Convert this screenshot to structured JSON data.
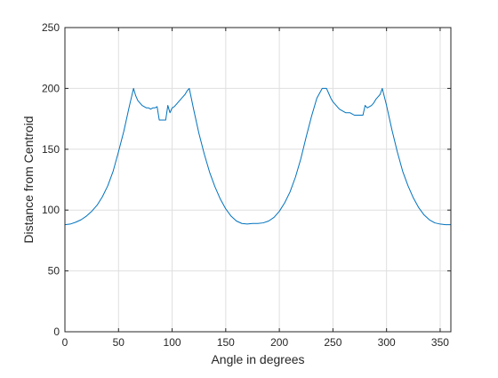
{
  "chart_data": {
    "type": "line",
    "title": "",
    "xlabel": "Angle in degrees",
    "ylabel": "Distance from Centroid",
    "xlim": [
      0,
      360
    ],
    "ylim": [
      0,
      250
    ],
    "xticks": [
      0,
      50,
      100,
      150,
      200,
      250,
      300,
      350
    ],
    "yticks": [
      0,
      50,
      100,
      150,
      200,
      250
    ],
    "xtick_labels": [
      "0",
      "50",
      "100",
      "150",
      "200",
      "250",
      "300",
      "350"
    ],
    "ytick_labels": [
      "0",
      "50",
      "100",
      "150",
      "200",
      "250"
    ],
    "grid": true,
    "line_color": "#0072BD",
    "series": [
      {
        "x": [
          0,
          5,
          10,
          15,
          20,
          25,
          30,
          35,
          40,
          45,
          50,
          55,
          60,
          64,
          66,
          68,
          70,
          72,
          74,
          76,
          78,
          80,
          82,
          84,
          86,
          88,
          90,
          92,
          94,
          96,
          98,
          100,
          102,
          104,
          106,
          108,
          110,
          112,
          114,
          116,
          120,
          125,
          130,
          135,
          140,
          145,
          150,
          155,
          160,
          165,
          170,
          175,
          180,
          185,
          190,
          195,
          200,
          205,
          210,
          215,
          220,
          225,
          230,
          235,
          240,
          244,
          246,
          248,
          250,
          252,
          254,
          256,
          258,
          260,
          262,
          264,
          266,
          268,
          270,
          272,
          274,
          276,
          278,
          280,
          282,
          284,
          286,
          288,
          290,
          292,
          294,
          296,
          300,
          305,
          310,
          315,
          320,
          325,
          330,
          335,
          340,
          345,
          350,
          355,
          360
        ],
        "y": [
          88,
          88.5,
          90,
          92,
          95,
          99,
          104,
          111,
          120,
          132,
          148,
          165,
          185,
          200,
          194,
          190,
          188,
          186,
          185,
          184,
          184,
          183,
          184,
          184,
          185,
          174,
          174,
          174,
          174,
          186,
          180,
          184,
          185,
          187,
          189,
          191,
          193,
          195,
          198,
          200,
          183,
          163,
          146,
          131,
          119,
          109,
          101,
          95,
          91,
          89,
          88.5,
          89,
          89,
          89.5,
          91,
          94,
          99,
          106,
          115,
          127,
          142,
          160,
          177,
          192,
          200,
          200,
          196,
          192,
          189,
          187,
          185,
          183,
          182,
          181,
          180,
          180,
          180,
          179,
          178,
          178,
          178,
          178,
          178,
          186,
          184,
          185,
          186,
          188,
          191,
          193,
          195,
          200,
          186,
          166,
          148,
          132,
          120,
          110,
          102,
          96,
          92,
          89.5,
          88.5,
          88,
          88
        ]
      }
    ]
  }
}
